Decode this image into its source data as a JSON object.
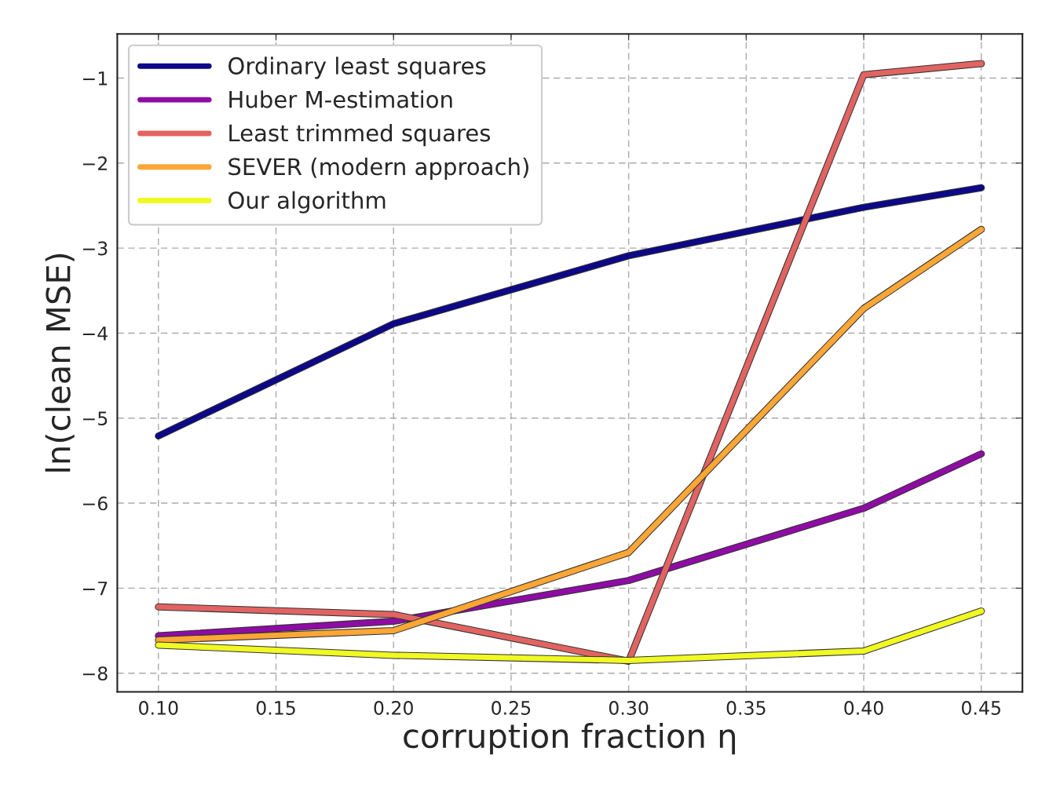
{
  "chart_data": {
    "type": "line",
    "xlabel": "corruption fraction η",
    "ylabel": "ln(clean MSE)",
    "x": [
      0.1,
      0.2,
      0.3,
      0.4,
      0.45
    ],
    "series": [
      {
        "name": "Ordinary least squares",
        "color": "#0d0887",
        "values": [
          -5.21,
          -3.89,
          -3.09,
          -2.52,
          -2.29
        ]
      },
      {
        "name": "Huber M-estimation",
        "color": "#8e0ca4",
        "values": [
          -7.56,
          -7.39,
          -6.91,
          -6.06,
          -5.42
        ]
      },
      {
        "name": "Least trimmed squares",
        "color": "#e16462",
        "values": [
          -7.22,
          -7.31,
          -7.86,
          -0.96,
          -0.83
        ]
      },
      {
        "name": "SEVER (modern approach)",
        "color": "#fca636",
        "values": [
          -7.61,
          -7.5,
          -6.58,
          -3.71,
          -2.78
        ]
      },
      {
        "name": "Our algorithm",
        "color": "#f0f921",
        "values": [
          -7.67,
          -7.79,
          -7.85,
          -7.74,
          -7.27
        ]
      }
    ],
    "xlim": [
      0.0825,
      0.4675
    ],
    "ylim": [
      -8.22,
      -0.48
    ],
    "xticks": [
      {
        "value": 0.1,
        "label": "0.10"
      },
      {
        "value": 0.15,
        "label": "0.15"
      },
      {
        "value": 0.2,
        "label": "0.20"
      },
      {
        "value": 0.25,
        "label": "0.25"
      },
      {
        "value": 0.3,
        "label": "0.30"
      },
      {
        "value": 0.35,
        "label": "0.35"
      },
      {
        "value": 0.4,
        "label": "0.40"
      },
      {
        "value": 0.45,
        "label": "0.45"
      }
    ],
    "yticks": [
      -8,
      -7,
      -6,
      -5,
      -4,
      -3,
      -2,
      -1
    ],
    "grid": true,
    "legend": "top left",
    "marker": "none",
    "line_style": "solid"
  }
}
